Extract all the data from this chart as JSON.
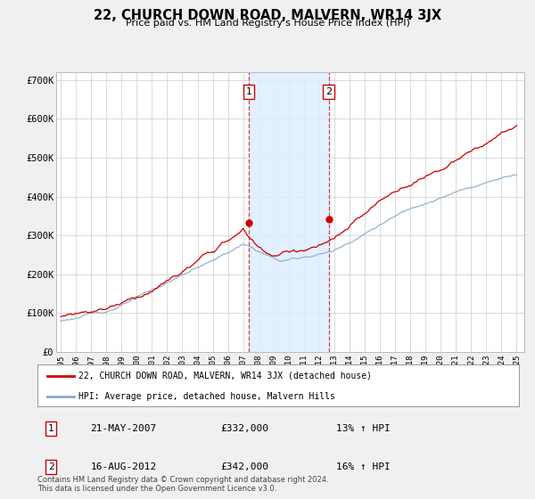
{
  "title": "22, CHURCH DOWN ROAD, MALVERN, WR14 3JX",
  "subtitle": "Price paid vs. HM Land Registry's House Price Index (HPI)",
  "ylabel_ticks": [
    "£0",
    "£100K",
    "£200K",
    "£300K",
    "£400K",
    "£500K",
    "£600K",
    "£700K"
  ],
  "ytick_values": [
    0,
    100000,
    200000,
    300000,
    400000,
    500000,
    600000,
    700000
  ],
  "ylim": [
    0,
    720000
  ],
  "xlim_left": 1995.0,
  "xlim_right": 2025.5,
  "line1_color": "#cc0000",
  "line2_color": "#88aacc",
  "marker_color": "#cc0000",
  "shade_color": "#ddeeff",
  "vline_color": "#cc4444",
  "grid_color": "#cccccc",
  "transaction1": {
    "label": "1",
    "date": "21-MAY-2007",
    "price": 332000,
    "hpi": "13% ↑ HPI",
    "x": 2007.375
  },
  "transaction2": {
    "label": "2",
    "date": "16-AUG-2012",
    "price": 342000,
    "hpi": "16% ↑ HPI",
    "x": 2012.625
  },
  "legend_line1": "22, CHURCH DOWN ROAD, MALVERN, WR14 3JX (detached house)",
  "legend_line2": "HPI: Average price, detached house, Malvern Hills",
  "footnote": "Contains HM Land Registry data © Crown copyright and database right 2024.\nThis data is licensed under the Open Government Licence v3.0.",
  "background_color": "#f0f0f0",
  "plot_bg_color": "#ffffff"
}
